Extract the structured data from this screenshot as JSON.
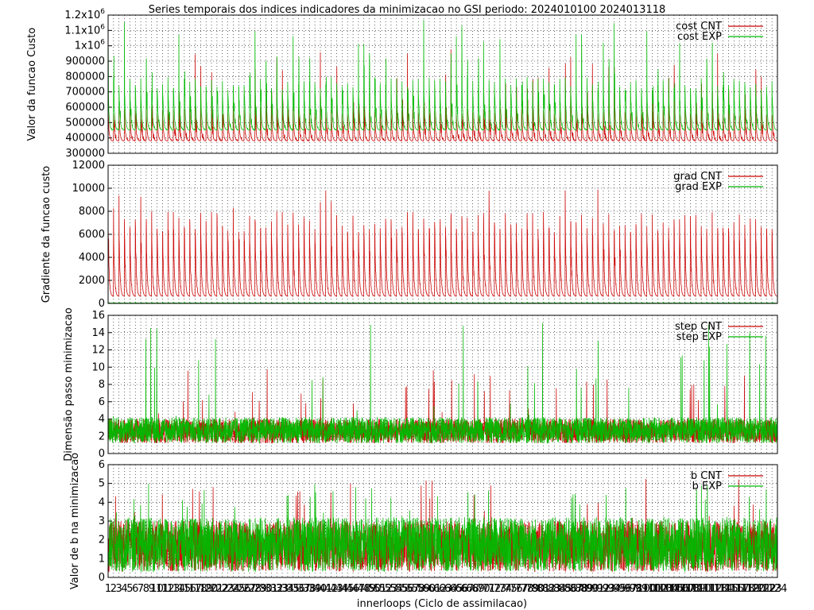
{
  "title": "Series temporais dos indices indicadores da minimizacao no GSI periodo: 2024010100 2024013118",
  "xlabel": "innerloops (Ciclo de assimilacao)",
  "colors": {
    "cnt": "#cc0000",
    "exp": "#00bb00",
    "axis": "#000000"
  },
  "chart_data": [
    {
      "type": "line",
      "panel": "cost",
      "ylabel": "Valor da funcao Custo",
      "ylim": [
        300000,
        1200000
      ],
      "yticks": [
        "300000",
        "400000",
        "500000",
        "600000",
        "700000",
        "800000",
        "900000",
        "1x10^6",
        "1.1x10^6",
        "1.2x10^6"
      ],
      "grid": true,
      "legend_position": "top-right",
      "series": [
        {
          "name": "cost CNT",
          "color": "#cc0000",
          "baseline": 380000,
          "peak": 600000,
          "spike_peak": 1000000
        },
        {
          "name": "cost EXP",
          "color": "#00bb00",
          "baseline": 450000,
          "peak": 800000,
          "spike_peak": 1180000
        }
      ]
    },
    {
      "type": "line",
      "panel": "grad",
      "ylabel": "Gradiente da funcao custo",
      "ylim": [
        0,
        12000
      ],
      "yticks": [
        "0",
        "2000",
        "4000",
        "6000",
        "8000",
        "10000",
        "12000"
      ],
      "grid": true,
      "legend_position": "top-right",
      "series": [
        {
          "name": "grad CNT",
          "color": "#cc0000",
          "baseline": 600,
          "peak": 8000,
          "spike_peak": 10000
        },
        {
          "name": "grad EXP",
          "color": "#00bb00",
          "baseline": 30,
          "peak": 80,
          "spike_peak": 120
        }
      ]
    },
    {
      "type": "line",
      "panel": "step",
      "ylabel": "Dimensão passo minimizacao",
      "ylim": [
        0,
        16
      ],
      "yticks": [
        "0",
        "2",
        "4",
        "6",
        "8",
        "10",
        "12",
        "14",
        "16"
      ],
      "grid": true,
      "legend_position": "top-right",
      "series": [
        {
          "name": "step CNT",
          "color": "#cc0000",
          "low": 1.2,
          "high": 4.0,
          "spike_peak": 9.8
        },
        {
          "name": "step EXP",
          "color": "#00bb00",
          "low": 1.2,
          "high": 4.2,
          "spike_peak": 15.2
        }
      ]
    },
    {
      "type": "line",
      "panel": "b",
      "ylabel": "Valor de b na minimizacao",
      "ylim": [
        0,
        6
      ],
      "yticks": [
        "0",
        "1",
        "2",
        "3",
        "4",
        "5",
        "6"
      ],
      "grid": true,
      "legend_position": "top-right",
      "series": [
        {
          "name": "b CNT",
          "color": "#cc0000",
          "low": 0.3,
          "high": 3.0,
          "spike_peak": 5.3
        },
        {
          "name": "b EXP",
          "color": "#00bb00",
          "low": 0.3,
          "high": 3.2,
          "spike_peak": 5.0
        }
      ]
    }
  ],
  "x_axis": {
    "xlim": [
      1,
      124
    ],
    "ticks": [
      "1",
      "2",
      "3",
      "4",
      "5",
      "6",
      "7",
      "8",
      "9",
      "10",
      "11",
      "12",
      "13",
      "14",
      "15",
      "16",
      "17",
      "18",
      "19",
      "20",
      "21",
      "22",
      "23",
      "24",
      "25",
      "26",
      "27",
      "28",
      "29",
      "30",
      "31",
      "32",
      "33",
      "34",
      "35",
      "36",
      "37",
      "38",
      "39",
      "40",
      "41",
      "42",
      "43",
      "44",
      "45",
      "46",
      "47",
      "48",
      "49",
      "50",
      "51",
      "52",
      "53",
      "54",
      "55",
      "56",
      "57",
      "58",
      "59",
      "60",
      "61",
      "62",
      "63",
      "64",
      "65",
      "66",
      "67",
      "68",
      "69",
      "70",
      "71",
      "72",
      "73",
      "74",
      "75",
      "76",
      "77",
      "78",
      "79",
      "80",
      "81",
      "82",
      "83",
      "84",
      "85",
      "86",
      "87",
      "88",
      "89",
      "90",
      "91",
      "92",
      "93",
      "94",
      "95",
      "96",
      "97",
      "98",
      "99",
      "100",
      "101",
      "102",
      "103",
      "104",
      "105",
      "106",
      "107",
      "108",
      "109",
      "110",
      "111",
      "112",
      "113",
      "114",
      "115",
      "116",
      "117",
      "118",
      "119",
      "120",
      "121",
      "122",
      "123",
      "124"
    ]
  }
}
